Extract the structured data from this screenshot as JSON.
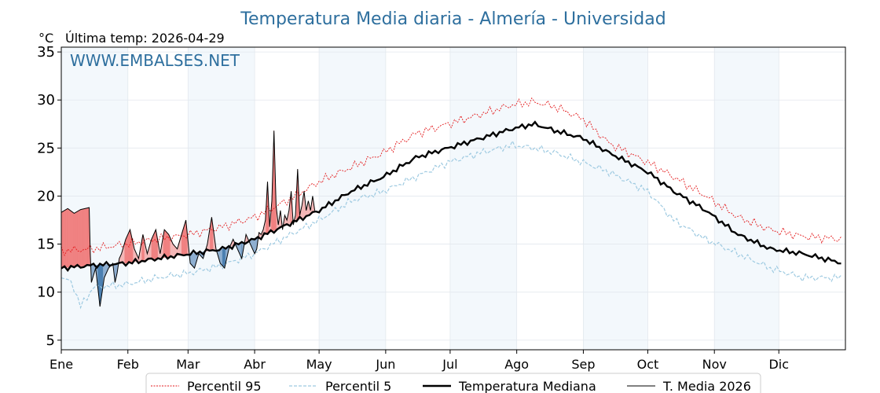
{
  "chart_data": {
    "type": "line",
    "title": "Temperatura Media diaria - Almería - Universidad",
    "subtitle": "Última temp: 2026-04-29",
    "ylabel": "°C",
    "watermark": "WWW.EMBALSES.NET",
    "ylim": [
      4,
      35.5
    ],
    "yticks": [
      5,
      10,
      15,
      20,
      25,
      30,
      35
    ],
    "x_domain_days": [
      0,
      365
    ],
    "months": [
      "Ene",
      "Feb",
      "Mar",
      "Abr",
      "May",
      "Jun",
      "Jul",
      "Ago",
      "Sep",
      "Oct",
      "Nov",
      "Dic"
    ],
    "grid": true,
    "legend_position": "bottom",
    "series": [
      {
        "name": "Percentil 95",
        "color": "#e31a1c",
        "style": "dotted",
        "x": [
          0,
          15,
          30,
          45,
          60,
          75,
          90,
          105,
          120,
          135,
          150,
          165,
          180,
          195,
          210,
          220,
          230,
          243,
          255,
          273,
          285,
          300,
          315,
          330,
          345,
          364
        ],
        "y": [
          14.3,
          14.5,
          15.0,
          15.5,
          16.0,
          16.8,
          17.8,
          19.5,
          21.5,
          23.0,
          24.5,
          26.5,
          27.5,
          28.5,
          29.5,
          29.8,
          29.3,
          28.0,
          25.5,
          23.5,
          22.0,
          20.0,
          17.8,
          16.5,
          15.8,
          15.5
        ]
      },
      {
        "name": "Percentil 5",
        "color": "#9ecae1",
        "style": "dashed",
        "x": [
          0,
          5,
          9,
          15,
          30,
          45,
          60,
          75,
          90,
          105,
          120,
          135,
          150,
          165,
          180,
          195,
          210,
          220,
          230,
          243,
          255,
          273,
          285,
          300,
          315,
          330,
          345,
          364
        ],
        "y": [
          11.5,
          11.0,
          8.5,
          10.5,
          10.8,
          11.5,
          12.0,
          12.8,
          14.0,
          15.8,
          17.5,
          19.5,
          20.5,
          22.0,
          23.5,
          24.5,
          25.3,
          25.0,
          24.5,
          23.5,
          22.5,
          20.5,
          17.5,
          15.5,
          14.0,
          12.5,
          11.5,
          11.5
        ]
      },
      {
        "name": "Temperatura Mediana",
        "color": "#000000",
        "style": "solid",
        "x": [
          0,
          15,
          30,
          45,
          60,
          75,
          90,
          105,
          120,
          135,
          150,
          165,
          180,
          195,
          210,
          220,
          230,
          243,
          255,
          273,
          285,
          300,
          315,
          330,
          345,
          364
        ],
        "y": [
          12.5,
          12.8,
          13.0,
          13.5,
          14.0,
          14.5,
          15.5,
          17.0,
          18.5,
          20.5,
          22.0,
          24.0,
          25.0,
          26.0,
          27.0,
          27.5,
          26.8,
          26.0,
          24.5,
          22.5,
          20.5,
          18.5,
          16.0,
          14.5,
          14.0,
          13.0
        ]
      },
      {
        "name": "T. Media 2026",
        "color": "#000000",
        "style": "solid-thin",
        "x": [
          0,
          3,
          6,
          9,
          13,
          13.5,
          14,
          16,
          17,
          18,
          19,
          20,
          22,
          24,
          25,
          26,
          27,
          28,
          30,
          32,
          34,
          36,
          38,
          40,
          42,
          44,
          46,
          48,
          50,
          52,
          54,
          56,
          58,
          60,
          62,
          64,
          66,
          68,
          70,
          72,
          74,
          76,
          78,
          80,
          82,
          84,
          86,
          88,
          90,
          91,
          92,
          93,
          94,
          95,
          96,
          97,
          98,
          99,
          100,
          101,
          102,
          103,
          104,
          105,
          106,
          107,
          108,
          109,
          110,
          111,
          112,
          113,
          114,
          115,
          116,
          117,
          118
        ],
        "y": [
          18.3,
          18.7,
          18.2,
          18.6,
          18.8,
          14.0,
          11.0,
          12.5,
          10.5,
          8.5,
          10.0,
          11.5,
          12.5,
          13.0,
          11.0,
          12.0,
          13.5,
          14.0,
          15.5,
          16.5,
          14.5,
          13.5,
          16.0,
          14.0,
          15.5,
          16.5,
          14.0,
          16.5,
          16.0,
          15.0,
          14.5,
          16.0,
          17.5,
          13.0,
          12.5,
          14.0,
          13.5,
          15.0,
          17.8,
          14.5,
          13.0,
          12.5,
          14.5,
          15.5,
          14.5,
          13.5,
          16.0,
          15.0,
          14.0,
          14.5,
          16.2,
          16.0,
          16.5,
          17.5,
          21.5,
          16.8,
          19.5,
          26.8,
          19.0,
          17.0,
          18.5,
          16.5,
          18.0,
          17.5,
          18.5,
          20.5,
          17.0,
          18.0,
          22.8,
          18.0,
          19.0,
          20.5,
          18.5,
          19.5,
          18.5,
          20.0,
          18.5
        ]
      }
    ]
  }
}
